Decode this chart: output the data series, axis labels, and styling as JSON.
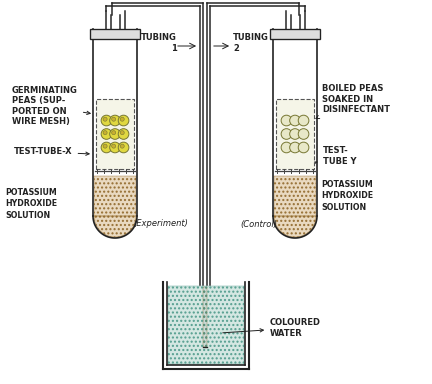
{
  "bg_color": "#f0f0f0",
  "tube_color": "#333333",
  "solution_color": "#c8a060",
  "water_color": "#a0c8c0",
  "pea_color": "#e8e060",
  "text_color": "#333333",
  "labels": {
    "germinating_peas": "GERMINATING\nPEAS (SUP-\nPORTED ON\nWIRE MESH)",
    "boiled_peas": "BOILED PEAS\nSOAKED IN\nDISINFECTANT",
    "tubing1": "TUBING\n1",
    "tubing2": "TUBING\n2",
    "test_tube_x": "TEST-TUBE-X",
    "test_tube_y": "TEST-\nTUBE Y",
    "potassium_left": "POTASSIUM\nHYDROXIDE\nSOLUTION",
    "potassium_right": "POTASSIUM\nHYDROXIDE\nSOLUTION",
    "experiment": "(Experiment)",
    "control": "(Control)",
    "coloured_water": "COLOURED\nWATER"
  }
}
